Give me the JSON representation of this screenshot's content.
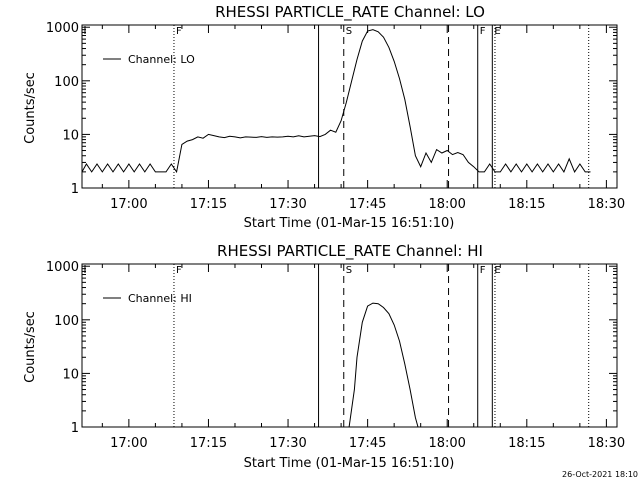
{
  "chart_data": [
    {
      "type": "line",
      "title": "RHESSI PARTICLE_RATE Channel: LO",
      "xlabel": "Start Time (01-Mar-15 16:51:10)",
      "ylabel": "Counts/sec",
      "x_ticks": [
        "17:00",
        "17:15",
        "17:30",
        "17:45",
        "18:00",
        "18:15",
        "18:30"
      ],
      "y_ticks": [
        "1",
        "10",
        "100",
        "1000"
      ],
      "yscale": "log",
      "xlim": [
        "16:51:10",
        "18:32"
      ],
      "ylim": [
        1,
        1100
      ],
      "grid": false,
      "legend_position": "top-left",
      "series": [
        {
          "name": "Channel: LO",
          "x": [
            "16:51:10",
            "16:52",
            "16:53",
            "16:54",
            "16:55",
            "16:56",
            "16:57",
            "16:58",
            "16:59",
            "17:00",
            "17:01",
            "17:02",
            "17:03",
            "17:04",
            "17:05",
            "17:06",
            "17:07",
            "17:08",
            "17:09",
            "17:10",
            "17:11",
            "17:12",
            "17:13",
            "17:14",
            "17:15",
            "17:16",
            "17:17",
            "17:18",
            "17:19",
            "17:20",
            "17:21",
            "17:22",
            "17:23",
            "17:24",
            "17:25",
            "17:26",
            "17:27",
            "17:28",
            "17:29",
            "17:30",
            "17:31",
            "17:32",
            "17:33",
            "17:34",
            "17:35",
            "17:36",
            "17:37",
            "17:38",
            "17:39",
            "17:40",
            "17:41",
            "17:42",
            "17:43",
            "17:44",
            "17:45",
            "17:46",
            "17:47",
            "17:48",
            "17:49",
            "17:50",
            "17:51",
            "17:52",
            "17:53",
            "17:54",
            "17:55",
            "17:56",
            "17:57",
            "17:58",
            "17:59",
            "18:00",
            "18:01",
            "18:02",
            "18:03",
            "18:04",
            "18:05",
            "18:06",
            "18:07",
            "18:08",
            "18:09",
            "18:10",
            "18:11",
            "18:12",
            "18:13",
            "18:14",
            "18:15",
            "18:16",
            "18:17",
            "18:18",
            "18:19",
            "18:20",
            "18:21",
            "18:22",
            "18:23",
            "18:24",
            "18:25",
            "18:26",
            "18:27"
          ],
          "y": [
            2,
            2.8,
            2,
            2.8,
            2,
            2.8,
            2,
            2.8,
            2,
            2.8,
            2,
            2.8,
            2,
            2.8,
            2,
            2,
            2,
            2.8,
            2,
            6.5,
            7.5,
            8,
            9,
            8.5,
            10,
            9.5,
            9,
            8.7,
            9.2,
            9,
            8.6,
            9,
            8.9,
            8.8,
            9.1,
            8.8,
            9,
            8.9,
            9,
            9.2,
            9,
            9.4,
            9,
            9.2,
            9.5,
            9.1,
            10,
            12,
            11,
            18,
            40,
            100,
            250,
            550,
            850,
            900,
            820,
            650,
            420,
            230,
            110,
            45,
            14,
            4,
            2.5,
            4.5,
            3,
            5.2,
            4.5,
            5,
            4.2,
            4.6,
            4.2,
            3,
            2.5,
            2,
            2,
            2.8,
            2,
            2,
            2.8,
            2,
            2.8,
            2,
            2.8,
            2,
            2.8,
            2,
            2.8,
            2,
            2.8,
            2,
            3.5,
            2,
            2.8,
            2,
            2
          ]
        }
      ],
      "annotations": [
        {
          "label": "F",
          "x": "17:08:30",
          "line": "dotted"
        },
        {
          "label": "",
          "x": "17:35:45",
          "line": "solid"
        },
        {
          "label": "S",
          "x": "17:40:30",
          "line": "dashed"
        },
        {
          "label": "",
          "x": "18:00:15",
          "line": "dashed"
        },
        {
          "label": "F",
          "x": "18:05:45",
          "line": "solid"
        },
        {
          "label": "E",
          "x": "18:08:30",
          "line": "solid"
        },
        {
          "label": "",
          "x": "18:09:00",
          "line": "dotted"
        },
        {
          "label": "",
          "x": "18:26:40",
          "line": "dotted"
        }
      ]
    },
    {
      "type": "line",
      "title": "RHESSI PARTICLE_RATE Channel: HI",
      "xlabel": "Start Time (01-Mar-15 16:51:10)",
      "ylabel": "Counts/sec",
      "x_ticks": [
        "17:00",
        "17:15",
        "17:30",
        "17:45",
        "18:00",
        "18:15",
        "18:30"
      ],
      "y_ticks": [
        "1",
        "10",
        "100",
        "1000"
      ],
      "yscale": "log",
      "xlim": [
        "16:51:10",
        "18:32"
      ],
      "ylim": [
        1,
        1100
      ],
      "grid": false,
      "legend_position": "top-left",
      "series": [
        {
          "name": "Channel: HI",
          "x": [
            "17:41:30",
            "17:42:30",
            "17:43",
            "17:44",
            "17:45",
            "17:46",
            "17:47",
            "17:48",
            "17:49",
            "17:50",
            "17:51",
            "17:52",
            "17:53",
            "17:54",
            "17:54:30"
          ],
          "y": [
            1,
            5,
            20,
            90,
            180,
            205,
            200,
            170,
            130,
            80,
            40,
            15,
            5,
            1.5,
            1
          ]
        }
      ],
      "annotations": [
        {
          "label": "F",
          "x": "17:08:30",
          "line": "dotted"
        },
        {
          "label": "",
          "x": "17:35:45",
          "line": "solid"
        },
        {
          "label": "S",
          "x": "17:40:30",
          "line": "dashed"
        },
        {
          "label": "",
          "x": "18:00:15",
          "line": "dashed"
        },
        {
          "label": "F",
          "x": "18:05:45",
          "line": "solid"
        },
        {
          "label": "E",
          "x": "18:08:30",
          "line": "solid"
        },
        {
          "label": "",
          "x": "18:09:00",
          "line": "dotted"
        },
        {
          "label": "",
          "x": "18:26:40",
          "line": "dotted"
        }
      ]
    }
  ],
  "timestamp": "26-Oct-2021 18:10"
}
